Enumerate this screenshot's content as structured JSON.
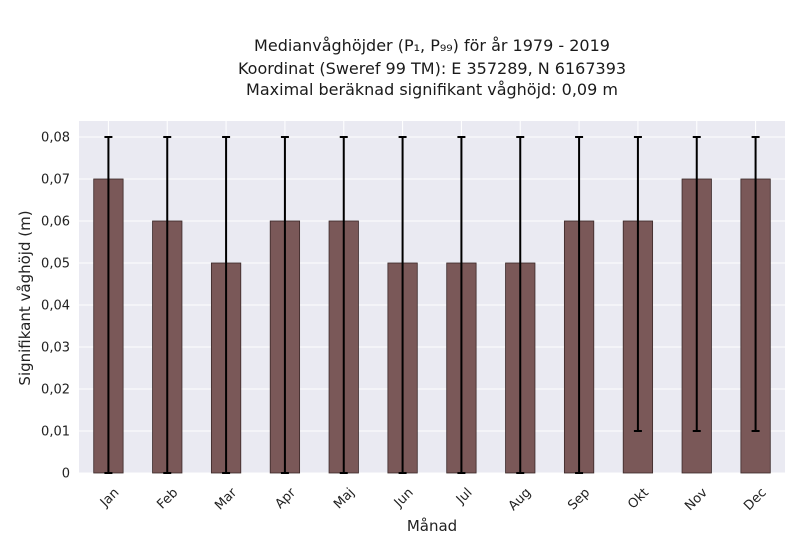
{
  "chart_data": {
    "type": "bar",
    "title_lines": [
      "Medianvåghöjder (P₁, P₉₉) för år 1979 - 2019",
      "Koordinat (Sweref 99 TM): E 357289, N 6167393",
      "Maximal beräknad signifikant våghöjd: 0,09 m"
    ],
    "xlabel": "Månad",
    "ylabel": "Signifikant våghöjd (m)",
    "categories": [
      "Jan",
      "Feb",
      "Mar",
      "Apr",
      "Maj",
      "Jun",
      "Jul",
      "Aug",
      "Sep",
      "Okt",
      "Nov",
      "Dec"
    ],
    "values": [
      0.07,
      0.06,
      0.05,
      0.06,
      0.06,
      0.05,
      0.05,
      0.05,
      0.06,
      0.06,
      0.07,
      0.07
    ],
    "error_low": [
      0.0,
      0.0,
      0.0,
      0.0,
      0.0,
      0.0,
      0.0,
      0.0,
      0.0,
      0.01,
      0.01,
      0.01
    ],
    "error_high": [
      0.08,
      0.08,
      0.08,
      0.08,
      0.08,
      0.08,
      0.08,
      0.08,
      0.08,
      0.08,
      0.08,
      0.08
    ],
    "ylim": [
      0,
      0.08
    ],
    "yticks": [
      "0",
      "0,01",
      "0,02",
      "0,03",
      "0,04",
      "0,05",
      "0,06",
      "0,07",
      "0,08"
    ],
    "grid": true,
    "colors": {
      "bar_fill": "#7a5858",
      "bar_edge": "#3a2828",
      "errorbar": "#000000",
      "plot_background": "#eaeaf2",
      "grid": "#ffffff"
    }
  }
}
